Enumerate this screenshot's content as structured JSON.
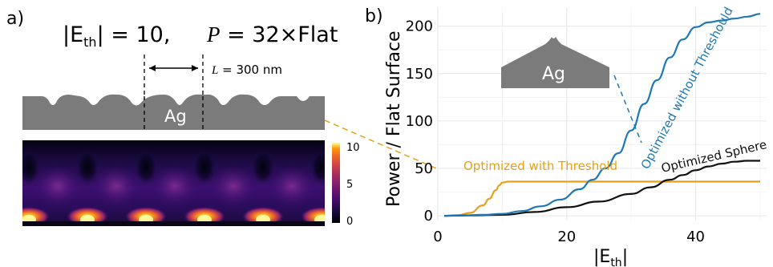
{
  "panel_a": {
    "label": "a)",
    "title_eth": "|E",
    "title_eth_sub": "th",
    "title_eth_rest": "| = 10,",
    "title_p": "P",
    "title_p_rest": " = 32×Flat",
    "period_symbol": "L",
    "period_rest": " = 300 nm",
    "material": "Ag",
    "colorbar_ticks": [
      "10",
      "5",
      "0"
    ]
  },
  "chart_data": {
    "type": "line",
    "panel_label": "b)",
    "ylabel": "Power / Flat Surface",
    "xlabel_main": "|E",
    "xlabel_sub": "th",
    "xlabel_end": "|",
    "xlim": [
      0,
      51
    ],
    "ylim": [
      -5,
      220
    ],
    "xticks": [
      0,
      20,
      40
    ],
    "yticks": [
      0,
      50,
      100,
      150,
      200
    ],
    "inset_label": "Ag",
    "colors": {
      "blue": "#1f78b4",
      "black": "#111111",
      "orange": "#e6a118",
      "grid": "#e6e6e6"
    },
    "series": [
      {
        "name": "Optimized without Threshould",
        "color": "#1f78b4",
        "x": [
          1,
          4,
          7,
          10,
          13,
          16,
          19,
          22,
          24,
          26,
          28,
          30,
          32,
          34,
          36,
          38,
          40,
          42,
          44,
          46,
          48,
          50
        ],
        "y": [
          0,
          0.5,
          1,
          2,
          5,
          10,
          17,
          28,
          38,
          50,
          66,
          90,
          118,
          143,
          167,
          186,
          199,
          204,
          206,
          208,
          210,
          213
        ]
      },
      {
        "name": "Optimized Sphere",
        "color": "#111111",
        "x": [
          1,
          5,
          10,
          15,
          20,
          25,
          30,
          33,
          36,
          38,
          40,
          42,
          44,
          46,
          48,
          50
        ],
        "y": [
          0,
          0.3,
          1,
          4,
          9,
          15,
          23,
          30,
          38,
          43,
          48,
          52,
          55,
          57,
          58,
          58
        ]
      },
      {
        "name": "Optimized with Threshold",
        "color": "#e6a118",
        "x": [
          1,
          3,
          5,
          7,
          8,
          9,
          9.5,
          10,
          11,
          13,
          20,
          30,
          40,
          50
        ],
        "y": [
          0,
          0.5,
          3,
          11,
          18,
          27,
          32,
          35,
          36,
          36,
          36,
          36,
          36,
          36
        ]
      }
    ]
  }
}
